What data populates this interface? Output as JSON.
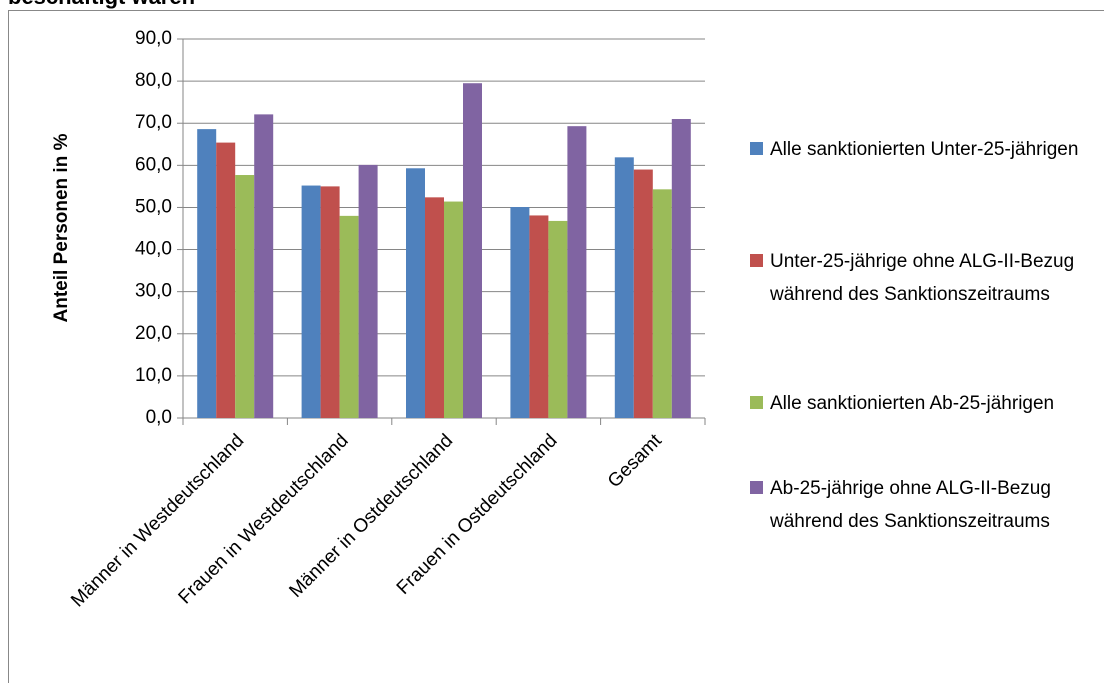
{
  "chart_data": {
    "type": "bar",
    "title": "beschäftigt waren",
    "y_label": "Anteil Personen in %",
    "categories": [
      "Männer in Westdeutschland",
      "Frauen in Westdeutschland",
      "Männer in Ostdeutschland",
      "Frauen in Ostdeutschland",
      "Gesamt"
    ],
    "series": [
      {
        "name": "Alle sanktionierten Unter-25-jährigen",
        "color": "#4f81bd",
        "values": [
          68.6,
          55.2,
          59.3,
          50.1,
          61.9
        ]
      },
      {
        "name": "Unter-25-jährige ohne ALG-II-Bezug während des Sanktionszeitraums",
        "color": "#c0504d",
        "values": [
          65.4,
          55.0,
          52.4,
          48.1,
          59.0
        ]
      },
      {
        "name": "Alle sanktionierten Ab-25-jährigen",
        "color": "#9bbb59",
        "values": [
          57.7,
          48.0,
          51.4,
          46.8,
          54.3
        ]
      },
      {
        "name": "Ab-25-jährige ohne ALG-II-Bezug während des Sanktionszeitraums",
        "color": "#8064a2",
        "values": [
          72.1,
          60.1,
          79.5,
          69.3,
          71.0
        ]
      }
    ],
    "ylim": [
      0,
      90
    ],
    "yticks": [
      {
        "value": 0,
        "label": "0,0"
      },
      {
        "value": 10,
        "label": "10,0"
      },
      {
        "value": 20,
        "label": "20,0"
      },
      {
        "value": 30,
        "label": "30,0"
      },
      {
        "value": 40,
        "label": "40,0"
      },
      {
        "value": 50,
        "label": "50,0"
      },
      {
        "value": 60,
        "label": "60,0"
      },
      {
        "value": 70,
        "label": "70,0"
      },
      {
        "value": 80,
        "label": "80,0"
      },
      {
        "value": 90,
        "label": "90,0"
      }
    ],
    "grid": true,
    "legend": "right"
  }
}
